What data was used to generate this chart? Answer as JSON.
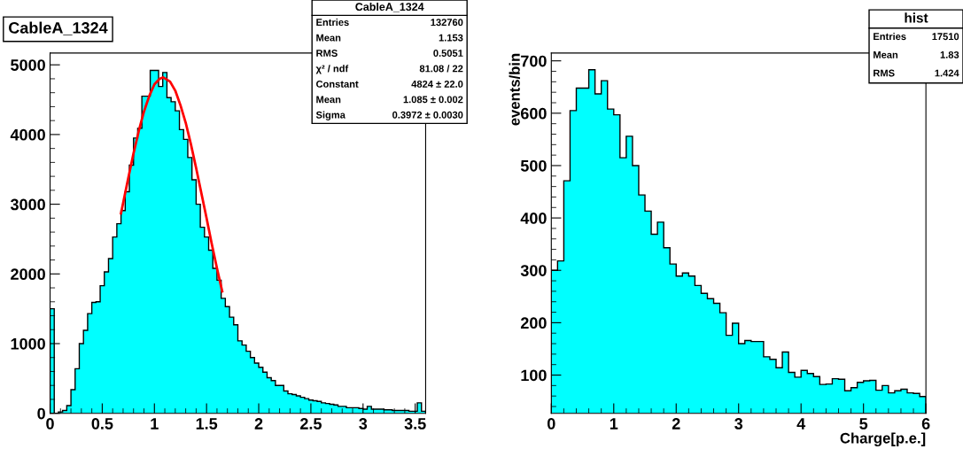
{
  "chart_data": [
    {
      "type": "histogram",
      "title": "CableA_1324",
      "xlim": [
        0,
        3.6
      ],
      "ylim": [
        0,
        5170
      ],
      "xticks": [
        0,
        0.5,
        1,
        1.5,
        2,
        2.5,
        3,
        3.5
      ],
      "yticks": [
        0,
        1000,
        2000,
        3000,
        4000,
        5000
      ],
      "grid": false,
      "legend": false,
      "bins": [
        0,
        0.04,
        0.08,
        0.12,
        0.16,
        0.2,
        0.24,
        0.28,
        0.32,
        0.36,
        0.4,
        0.44,
        0.48,
        0.52,
        0.56,
        0.6,
        0.64,
        0.68,
        0.72,
        0.76,
        0.8,
        0.84,
        0.88,
        0.92,
        0.96,
        1.0,
        1.04,
        1.08,
        1.12,
        1.16,
        1.2,
        1.24,
        1.28,
        1.32,
        1.36,
        1.4,
        1.44,
        1.48,
        1.52,
        1.56,
        1.6,
        1.64,
        1.68,
        1.72,
        1.76,
        1.8,
        1.84,
        1.88,
        1.92,
        1.96,
        2.0,
        2.04,
        2.08,
        2.12,
        2.16,
        2.2,
        2.24,
        2.28,
        2.32,
        2.36,
        2.4,
        2.44,
        2.48,
        2.52,
        2.56,
        2.6,
        2.64,
        2.68,
        2.72,
        2.76,
        2.8,
        2.84,
        2.88,
        2.92,
        2.96,
        3.0,
        3.04,
        3.08,
        3.12,
        3.16,
        3.2,
        3.24,
        3.28,
        3.32,
        3.36,
        3.4,
        3.44,
        3.48,
        3.52,
        3.56,
        3.6
      ],
      "series": [
        {
          "color": "#00ffff",
          "values": [
            1500,
            0,
            20,
            40,
            110,
            340,
            640,
            1000,
            1190,
            1430,
            1590,
            1600,
            1830,
            2030,
            2220,
            2530,
            2720,
            2910,
            3180,
            3560,
            3950,
            4090,
            4550,
            4550,
            4920,
            4920,
            4690,
            4890,
            4530,
            4470,
            4340,
            4070,
            3930,
            3670,
            3350,
            3000,
            2670,
            2530,
            2340,
            2080,
            1910,
            1650,
            1530,
            1380,
            1270,
            1040,
            980,
            890,
            800,
            720,
            660,
            590,
            510,
            470,
            400,
            400,
            320,
            280,
            270,
            250,
            230,
            210,
            190,
            180,
            170,
            150,
            140,
            130,
            120,
            100,
            100,
            80,
            80,
            80,
            70,
            60,
            100,
            60,
            60,
            60,
            50,
            50,
            40,
            40,
            40,
            40,
            30,
            30,
            150,
            30
          ]
        },
        {
          "type": "line",
          "color": "#ff0000",
          "x": [
            0.68,
            0.75,
            0.8,
            0.85,
            0.9,
            0.95,
            1.0,
            1.05,
            1.085,
            1.15,
            1.2,
            1.25,
            1.3,
            1.35,
            1.4,
            1.45,
            1.5,
            1.55,
            1.6,
            1.65
          ],
          "values": [
            2870,
            3380,
            3730,
            4050,
            4330,
            4550,
            4720,
            4800,
            4820,
            4760,
            4630,
            4420,
            4170,
            3860,
            3520,
            3160,
            2800,
            2430,
            2080,
            1750
          ]
        }
      ],
      "annotations": [
        "CableA_1324",
        "Entries",
        "132760",
        "Mean",
        "1.153",
        "RMS",
        "0.5051",
        "χ² / ndf",
        "81.08 / 22",
        "Constant",
        "4824 ± 22.0",
        "Mean",
        "1.085 ± 0.002",
        "Sigma",
        "0.3972 ± 0.0030"
      ]
    },
    {
      "type": "histogram",
      "xlabel": "Charge[p.e.]",
      "ylabel": "events/bin",
      "xlim": [
        0,
        6
      ],
      "ylim": [
        27,
        715
      ],
      "xticks": [
        0,
        1,
        2,
        3,
        4,
        5,
        6
      ],
      "yticks": [
        100,
        200,
        300,
        400,
        500,
        600,
        700
      ],
      "grid": false,
      "legend": false,
      "bins": [
        0,
        0.1,
        0.2,
        0.3,
        0.4,
        0.5,
        0.6,
        0.7,
        0.8,
        0.9,
        1.0,
        1.1,
        1.2,
        1.3,
        1.4,
        1.5,
        1.6,
        1.7,
        1.8,
        1.9,
        2.0,
        2.1,
        2.2,
        2.3,
        2.4,
        2.5,
        2.6,
        2.7,
        2.8,
        2.9,
        3.0,
        3.1,
        3.2,
        3.3,
        3.4,
        3.5,
        3.6,
        3.7,
        3.8,
        3.9,
        4.0,
        4.1,
        4.2,
        4.3,
        4.4,
        4.5,
        4.6,
        4.7,
        4.8,
        4.9,
        5.0,
        5.1,
        5.2,
        5.3,
        5.4,
        5.5,
        5.6,
        5.7,
        5.8,
        5.9,
        6.0
      ],
      "series": [
        {
          "color": "#00ffff",
          "values": [
            300,
            318,
            471,
            605,
            648,
            648,
            683,
            637,
            662,
            608,
            597,
            515,
            556,
            500,
            444,
            413,
            369,
            392,
            343,
            312,
            289,
            295,
            289,
            271,
            256,
            246,
            237,
            219,
            176,
            199,
            160,
            166,
            164,
            164,
            135,
            130,
            114,
            144,
            105,
            96,
            109,
            103,
            97,
            82,
            83,
            93,
            92,
            70,
            76,
            86,
            89,
            90,
            71,
            80,
            66,
            70,
            73,
            66,
            65,
            59
          ]
        }
      ],
      "annotations": [
        "hist",
        "Entries",
        "17510",
        "Mean",
        "1.83",
        "RMS",
        "1.424"
      ]
    }
  ]
}
